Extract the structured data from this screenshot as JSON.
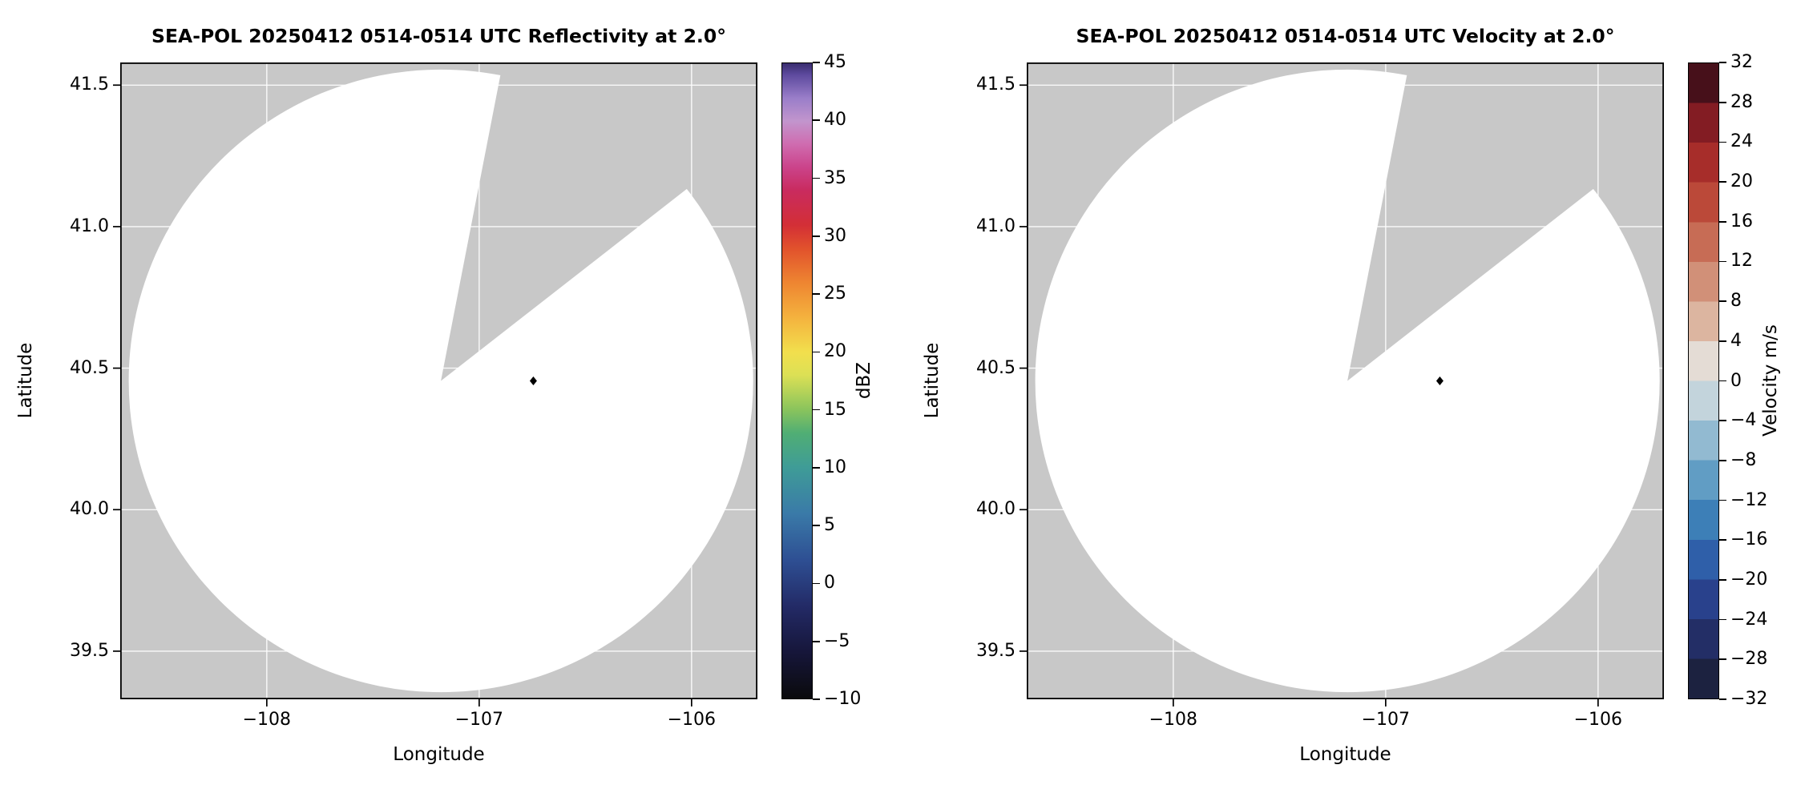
{
  "figure": {
    "background": "#ffffff"
  },
  "chart_data": [
    {
      "type": "radar_ppi",
      "title": "SEA-POL 20250412 0514-0514 UTC Reflectivity at 2.0°",
      "xlabel": "Longitude",
      "ylabel": "Latitude",
      "xlim": [
        -108.69,
        -105.69
      ],
      "ylim": [
        39.33,
        41.58
      ],
      "xticks": [
        -108,
        -107,
        -106
      ],
      "xtick_labels": [
        "−108",
        "−107",
        "−106"
      ],
      "yticks": [
        39.5,
        40.0,
        40.5,
        41.0,
        41.5
      ],
      "ytick_labels": [
        "39.5",
        "40.0",
        "40.5",
        "41.0",
        "41.5"
      ],
      "grid": true,
      "colors": {
        "masked": "#c8c8c8",
        "scanned": "#ffffff",
        "grid": "#ffffff",
        "marker": "#000000",
        "axes": "#000000"
      },
      "radar_scan": {
        "center_lon": -107.18,
        "center_lat": 40.455,
        "radius_lon": 1.47,
        "radius_lat": 1.1,
        "missing_sector_azimuth_deg": [
          11,
          52
        ],
        "note": "White disc = scanned area with no echoes above minimum reflectivity; gray = no data / masked; gray wedge = blocked sector"
      },
      "radar_marker": {
        "lon": -106.745,
        "lat": 40.455,
        "shape": "diamond"
      },
      "colorbar": {
        "label": "dBZ",
        "min": -10,
        "max": 45,
        "ticks": [
          -10,
          -5,
          0,
          5,
          10,
          15,
          20,
          25,
          30,
          35,
          40,
          45
        ],
        "tick_labels": [
          "−10",
          "−5",
          "0",
          "5",
          "10",
          "15",
          "20",
          "25",
          "30",
          "35",
          "40",
          "45"
        ],
        "style": "gradient",
        "stops": [
          {
            "pos": 0.0,
            "color": "#0a0a0c"
          },
          {
            "pos": 0.073,
            "color": "#16163a"
          },
          {
            "pos": 0.145,
            "color": "#232a66"
          },
          {
            "pos": 0.218,
            "color": "#2e4f93"
          },
          {
            "pos": 0.291,
            "color": "#3a7aa8"
          },
          {
            "pos": 0.364,
            "color": "#3f9c97"
          },
          {
            "pos": 0.418,
            "color": "#50ae74"
          },
          {
            "pos": 0.455,
            "color": "#8ac45c"
          },
          {
            "pos": 0.509,
            "color": "#dce055"
          },
          {
            "pos": 0.545,
            "color": "#f2df4d"
          },
          {
            "pos": 0.6,
            "color": "#f4b23e"
          },
          {
            "pos": 0.655,
            "color": "#ee8531"
          },
          {
            "pos": 0.709,
            "color": "#e1512c"
          },
          {
            "pos": 0.745,
            "color": "#d32f36"
          },
          {
            "pos": 0.8,
            "color": "#c92b5f"
          },
          {
            "pos": 0.836,
            "color": "#cb438a"
          },
          {
            "pos": 0.873,
            "color": "#cf6cb0"
          },
          {
            "pos": 0.909,
            "color": "#c295cd"
          },
          {
            "pos": 0.945,
            "color": "#9a7ec9"
          },
          {
            "pos": 0.982,
            "color": "#5d4a9e"
          },
          {
            "pos": 1.0,
            "color": "#3a2d6f"
          }
        ]
      }
    },
    {
      "type": "radar_ppi",
      "title": "SEA-POL 20250412 0514-0514 UTC Velocity at 2.0°",
      "xlabel": "Longitude",
      "ylabel": "Latitude",
      "xlim": [
        -108.69,
        -105.69
      ],
      "ylim": [
        39.33,
        41.58
      ],
      "xticks": [
        -108,
        -107,
        -106
      ],
      "xtick_labels": [
        "−108",
        "−107",
        "−106"
      ],
      "yticks": [
        39.5,
        40.0,
        40.5,
        41.0,
        41.5
      ],
      "ytick_labels": [
        "39.5",
        "40.0",
        "40.5",
        "41.0",
        "41.5"
      ],
      "grid": true,
      "colors": {
        "masked": "#c8c8c8",
        "scanned": "#ffffff",
        "grid": "#ffffff",
        "marker": "#000000",
        "axes": "#000000"
      },
      "radar_scan": {
        "center_lon": -107.18,
        "center_lat": 40.455,
        "radius_lon": 1.47,
        "radius_lat": 1.1,
        "missing_sector_azimuth_deg": [
          11,
          52
        ],
        "note": "White disc = scanned area with no valid velocity echoes; gray = no data / masked; gray wedge = blocked sector"
      },
      "radar_marker": {
        "lon": -106.745,
        "lat": 40.455,
        "shape": "diamond"
      },
      "colorbar": {
        "label": "Velocity m/s",
        "min": -32,
        "max": 32,
        "ticks": [
          -32,
          -28,
          -24,
          -20,
          -16,
          -12,
          -8,
          -4,
          0,
          4,
          8,
          12,
          16,
          20,
          24,
          28,
          32
        ],
        "tick_labels": [
          "−32",
          "−28",
          "−24",
          "−20",
          "−16",
          "−12",
          "−8",
          "−4",
          "0",
          "4",
          "8",
          "12",
          "16",
          "20",
          "24",
          "28",
          "32"
        ],
        "style": "segments",
        "segments": [
          "#1c2240",
          "#232e66",
          "#29418c",
          "#2f5fa9",
          "#3d7fb7",
          "#619dc4",
          "#92bad1",
          "#c3d4dc",
          "#e4dcd5",
          "#dcb5a0",
          "#d19078",
          "#c76c55",
          "#bb4939",
          "#a72d2a",
          "#831c23",
          "#47101a"
        ]
      }
    }
  ]
}
